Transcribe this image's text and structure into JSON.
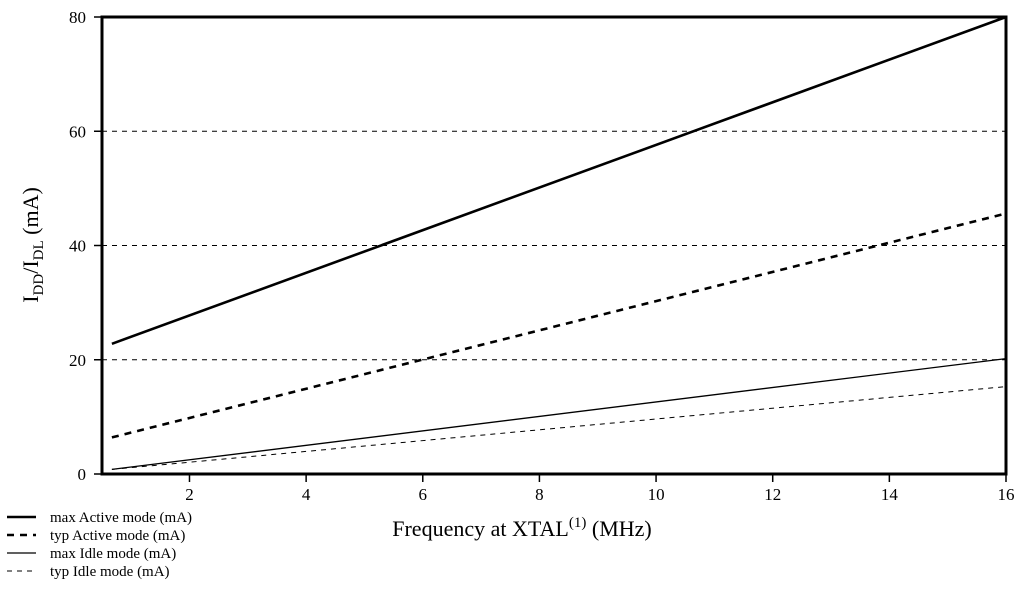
{
  "chart_data": {
    "type": "line",
    "title": "",
    "xlabel": {
      "main": "Frequency at XTAL",
      "superscript": "(1)",
      "unit": " (MHz)"
    },
    "ylabel": {
      "i1": "I",
      "sub1": "DD",
      "slash": "/I",
      "sub2": "DL",
      "unit": " (mA)"
    },
    "xlim": [
      0.5,
      16
    ],
    "ylim": [
      0,
      80
    ],
    "x_ticks": [
      2,
      4,
      6,
      8,
      10,
      12,
      14,
      16
    ],
    "x_tick_labels": [
      "2",
      "4",
      "6",
      "8",
      "10",
      "12",
      "14",
      "16"
    ],
    "y_ticks": [
      0,
      20,
      40,
      60,
      80
    ],
    "y_tick_labels": [
      "0",
      "20",
      "40",
      "60",
      "80"
    ],
    "grid": "horizontal-dashed",
    "legend_position": "bottom-left",
    "series": [
      {
        "name": "max Active mode (mA)",
        "style": "solid-thick",
        "color": "#000000",
        "x": [
          0.67,
          16
        ],
        "y": [
          22.8,
          80
        ]
      },
      {
        "name": "typ Active mode (mA)",
        "style": "dashed-thick",
        "color": "#000000",
        "x": [
          0.67,
          16
        ],
        "y": [
          6.4,
          45.6
        ]
      },
      {
        "name": "max Idle mode (mA)",
        "style": "solid-thin",
        "color": "#000000",
        "x": [
          0.67,
          16
        ],
        "y": [
          0.8,
          20.2
        ]
      },
      {
        "name": "typ Idle mode (mA)",
        "style": "dashed-thin",
        "color": "#000000",
        "x": [
          0.67,
          16
        ],
        "y": [
          0.8,
          15.3
        ]
      }
    ]
  }
}
